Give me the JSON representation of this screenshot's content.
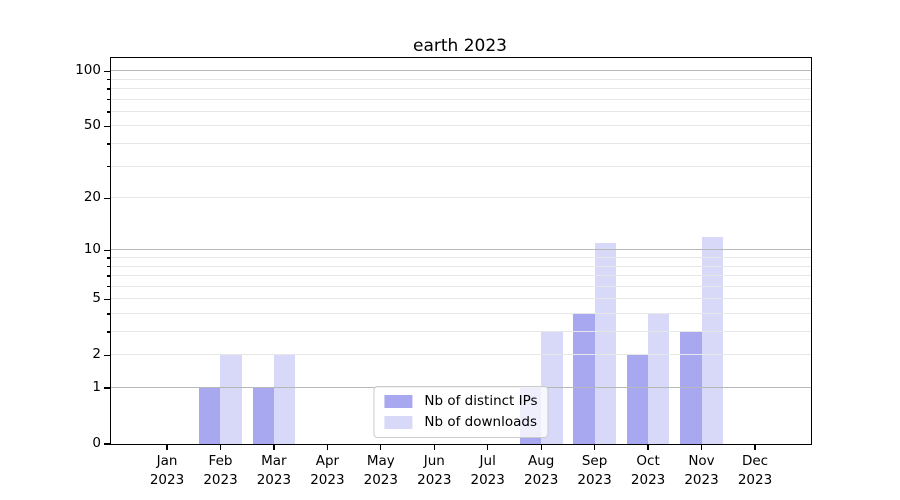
{
  "chart_data": {
    "type": "bar",
    "title": "earth 2023",
    "categories": [
      "Jan 2023",
      "Feb 2023",
      "Mar 2023",
      "Apr 2023",
      "May 2023",
      "Jun 2023",
      "Jul 2023",
      "Aug 2023",
      "Sep 2023",
      "Oct 2023",
      "Nov 2023",
      "Dec 2023"
    ],
    "series": [
      {
        "name": "Nb of distinct IPs",
        "color": "#a8a8f0",
        "values": [
          0,
          1,
          1,
          0,
          0,
          0,
          0,
          1,
          4,
          2,
          3,
          0
        ]
      },
      {
        "name": "Nb of downloads",
        "color": "#d8d8f8",
        "values": [
          0,
          2,
          2,
          0,
          0,
          0,
          0,
          3,
          11,
          4,
          12,
          0
        ]
      }
    ],
    "xlabel": "",
    "ylabel": "",
    "yscale": "log1p",
    "ylim": [
      0,
      118
    ],
    "yticks": [
      0,
      1,
      2,
      5,
      10,
      20,
      50,
      100
    ],
    "y_major_gridlines": [
      1,
      10,
      100
    ],
    "y_minor_gridlines": [
      2,
      3,
      4,
      5,
      6,
      7,
      8,
      9,
      20,
      30,
      40,
      50,
      60,
      70,
      80,
      90
    ],
    "grid": "on",
    "legend_position": "lower center",
    "colors": {
      "grid_major": "#b8b8b8",
      "grid_minor": "#e7e7e7",
      "axis": "#000000",
      "text": "#000000"
    }
  }
}
